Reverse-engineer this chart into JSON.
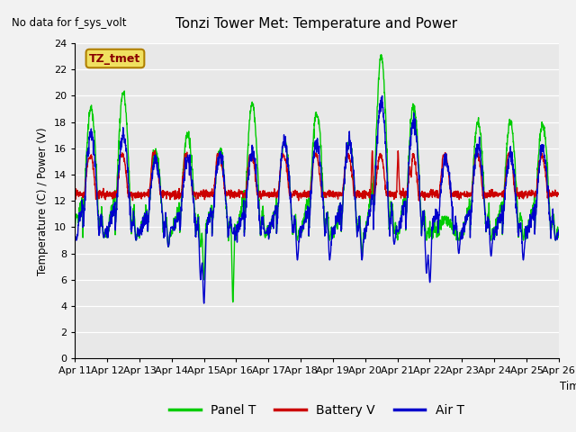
{
  "title": "Tonzi Tower Met: Temperature and Power",
  "top_left_text": "No data for f_sys_volt",
  "legend_box_text": "TZ_tmet",
  "ylabel": "Temperature (C) / Power (V)",
  "xlabel": "Time",
  "ylim": [
    0,
    24
  ],
  "x_tick_labels": [
    "Apr 11",
    "Apr 12",
    "Apr 13",
    "Apr 14",
    "Apr 15",
    "Apr 16",
    "Apr 17",
    "Apr 18",
    "Apr 19",
    "Apr 20",
    "Apr 21",
    "Apr 22",
    "Apr 23",
    "Apr 24",
    "Apr 25",
    "Apr 26"
  ],
  "bg_color": "#e8e8e8",
  "fig_color": "#f2f2f2",
  "panel_color": "#00cc00",
  "battery_color": "#cc0000",
  "air_color": "#0000cc",
  "line_width": 1.0,
  "legend_entries": [
    "Panel T",
    "Battery V",
    "Air T"
  ],
  "tztmet_box_facecolor": "#f0e060",
  "tztmet_box_edgecolor": "#b08000",
  "tztmet_text_color": "#880000"
}
